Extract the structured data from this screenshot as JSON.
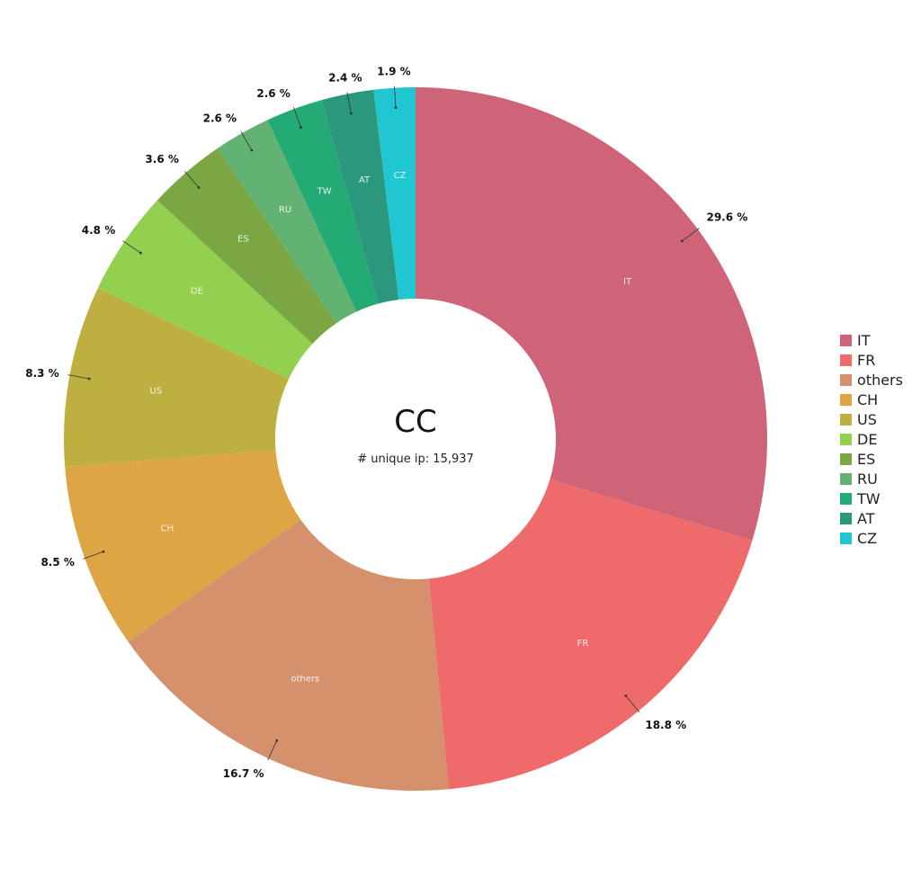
{
  "chart_data": {
    "type": "pie",
    "title": "CC",
    "subtitle": "# unique ip: 15,937",
    "categories": [
      "IT",
      "FR",
      "others",
      "CH",
      "US",
      "DE",
      "ES",
      "RU",
      "TW",
      "AT",
      "CZ"
    ],
    "values": [
      29.6,
      18.8,
      16.7,
      8.5,
      8.3,
      4.8,
      3.6,
      2.6,
      2.6,
      2.4,
      1.9
    ],
    "value_labels": [
      "29.6 %",
      "18.8 %",
      "16.7 %",
      "8.5 %",
      "8.3 %",
      "4.8 %",
      "3.6 %",
      "2.6 %",
      "2.6 %",
      "2.4 %",
      "1.9 %"
    ],
    "colors": [
      "#cf6479",
      "#ef6b6b",
      "#d5906c",
      "#dea545",
      "#bdb040",
      "#94d050",
      "#7aa744",
      "#62b274",
      "#24aa74",
      "#2b977c",
      "#20c7d2"
    ],
    "donut": true,
    "legend_position": "right"
  }
}
